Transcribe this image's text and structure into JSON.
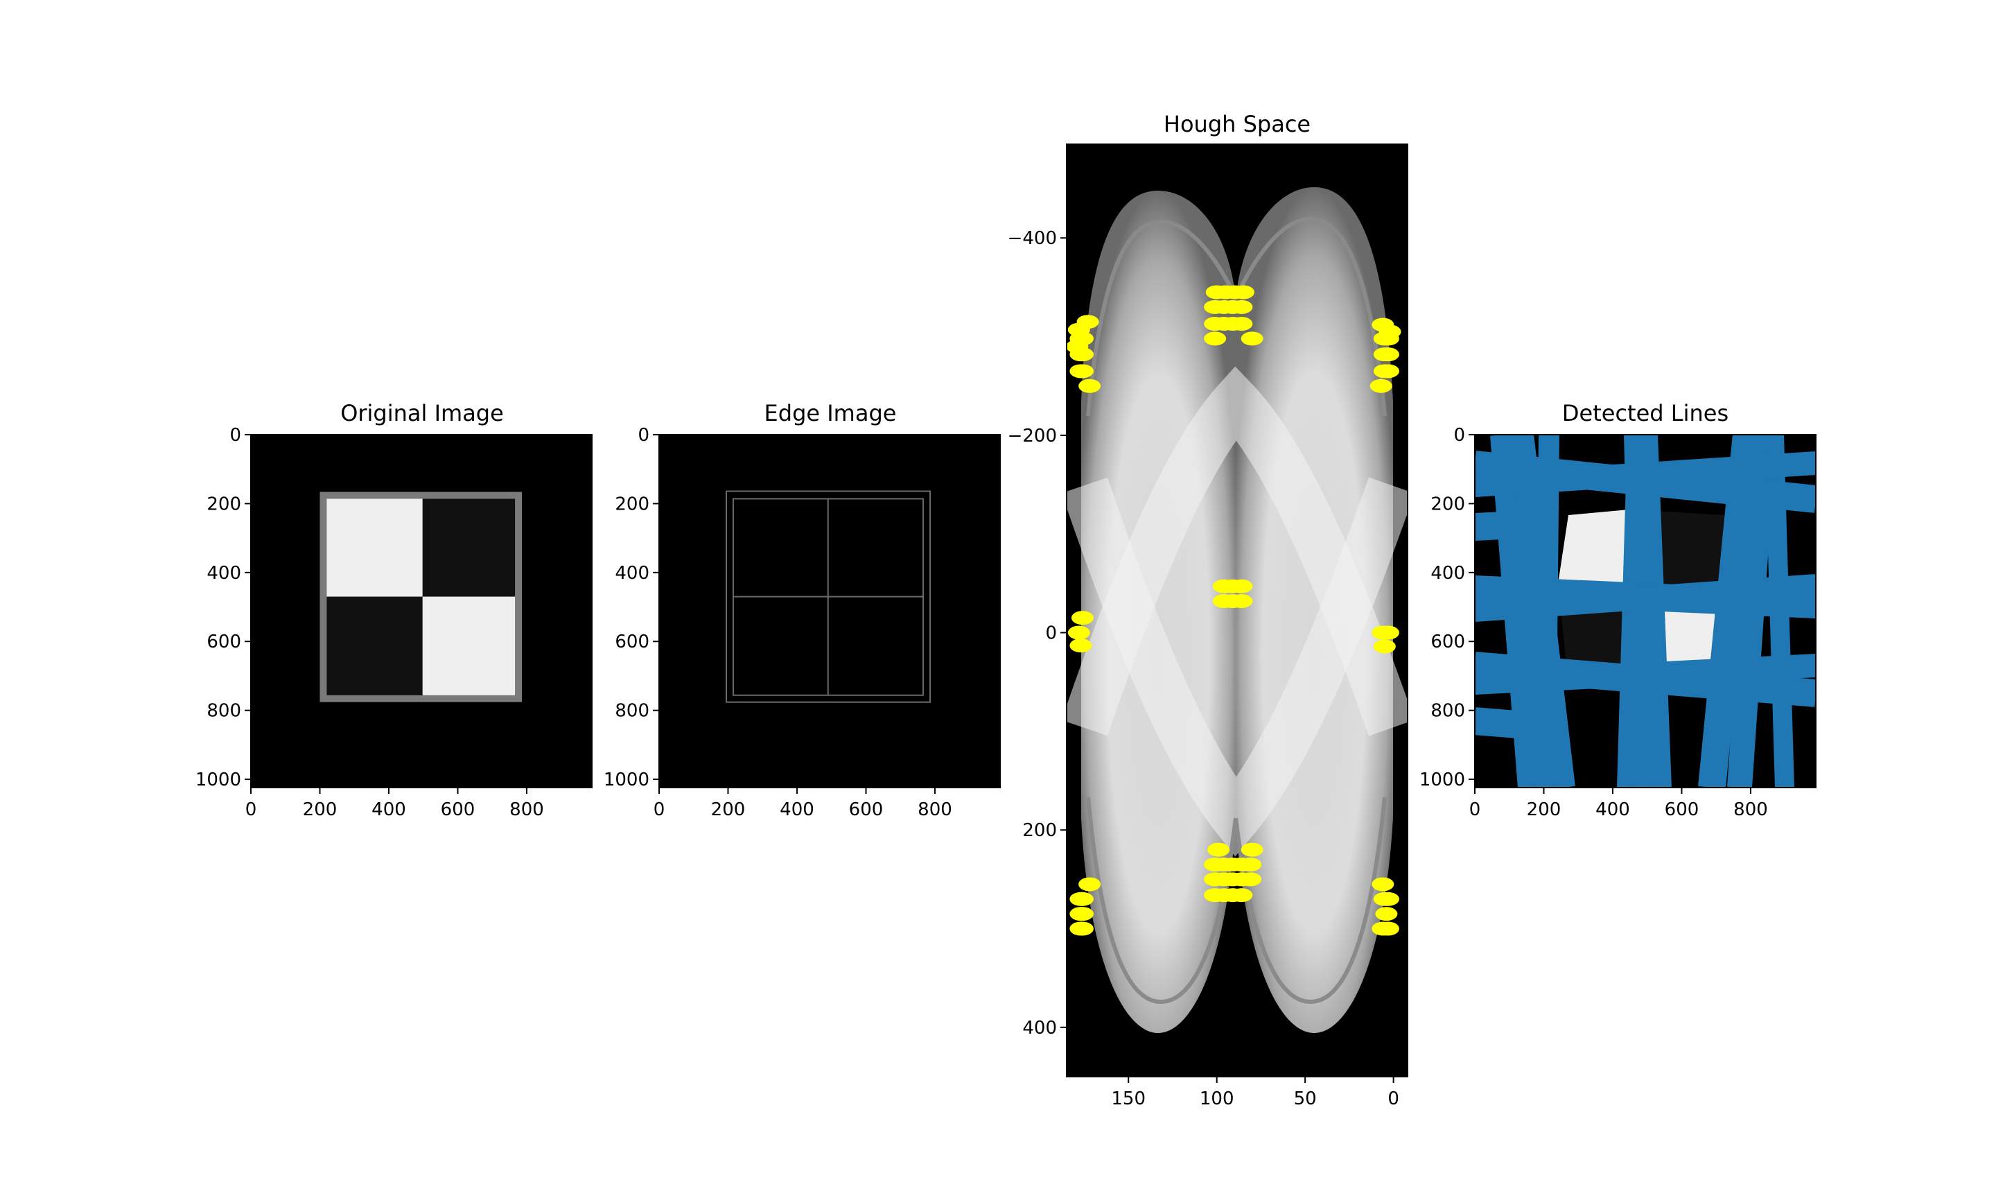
{
  "chart_data": [
    {
      "type": "image",
      "title": "Original Image",
      "xlim": [
        0,
        989
      ],
      "ylim": [
        1024,
        0
      ],
      "xticks": [
        0,
        200,
        400,
        600,
        800
      ],
      "yticks": [
        0,
        200,
        400,
        600,
        800,
        1000
      ],
      "frame": {
        "x0": 200,
        "y0": 166,
        "x1": 786,
        "y1": 776,
        "color": "#7a7a7a"
      },
      "quadrants": [
        {
          "x0": 220,
          "y0": 186,
          "x1": 498,
          "y1": 470,
          "color": "#efefef"
        },
        {
          "x0": 498,
          "y0": 186,
          "x1": 766,
          "y1": 470,
          "color": "#111111"
        },
        {
          "x0": 220,
          "y0": 470,
          "x1": 498,
          "y1": 756,
          "color": "#111111"
        },
        {
          "x0": 498,
          "y0": 470,
          "x1": 766,
          "y1": 756,
          "color": "#efefef"
        }
      ]
    },
    {
      "type": "image",
      "title": "Edge Image",
      "xlim": [
        0,
        989
      ],
      "ylim": [
        1024,
        0
      ],
      "xticks": [
        0,
        200,
        400,
        600,
        800
      ],
      "yticks": [
        0,
        200,
        400,
        600,
        800,
        1000
      ],
      "edges": {
        "outer": [
          195,
          164,
          786,
          776
        ],
        "inner": [
          215,
          186,
          766,
          756
        ],
        "vline_x": 490,
        "hline_y": 470,
        "color": "#6a6a6a"
      }
    },
    {
      "type": "scatter",
      "title": "Hough Space",
      "xlim": [
        185,
        -8
      ],
      "ylim": [
        450,
        -495
      ],
      "xticks": [
        150,
        100,
        50,
        0
      ],
      "yticks": [
        -400,
        -200,
        0,
        200,
        400
      ],
      "point_color": "#ffff00",
      "points": [
        [
          178,
          -307
        ],
        [
          177,
          -298
        ],
        [
          177,
          -282
        ],
        [
          177,
          -265
        ],
        [
          176,
          -298
        ],
        [
          176,
          -282
        ],
        [
          176,
          -265
        ],
        [
          179,
          -290
        ],
        [
          173,
          -315
        ],
        [
          172,
          -250
        ],
        [
          177,
          13
        ],
        [
          178,
          0
        ],
        [
          176,
          -15
        ],
        [
          177,
          300
        ],
        [
          177,
          285
        ],
        [
          177,
          270
        ],
        [
          176,
          300
        ],
        [
          176,
          285
        ],
        [
          176,
          270
        ],
        [
          172,
          255
        ],
        [
          100,
          -345
        ],
        [
          95,
          -345
        ],
        [
          90,
          -345
        ],
        [
          85,
          -345
        ],
        [
          101,
          -330
        ],
        [
          96,
          -330
        ],
        [
          91,
          -330
        ],
        [
          86,
          -330
        ],
        [
          101,
          -313
        ],
        [
          96,
          -313
        ],
        [
          91,
          -313
        ],
        [
          86,
          -313
        ],
        [
          101,
          -298
        ],
        [
          80,
          -298
        ],
        [
          96,
          -47
        ],
        [
          91,
          -47
        ],
        [
          86,
          -47
        ],
        [
          96,
          -32
        ],
        [
          91,
          -32
        ],
        [
          86,
          -32
        ],
        [
          99,
          220
        ],
        [
          80,
          220
        ],
        [
          101,
          235
        ],
        [
          96,
          235
        ],
        [
          91,
          235
        ],
        [
          86,
          235
        ],
        [
          81,
          235
        ],
        [
          101,
          250
        ],
        [
          96,
          250
        ],
        [
          91,
          250
        ],
        [
          86,
          250
        ],
        [
          81,
          250
        ],
        [
          101,
          266
        ],
        [
          96,
          266
        ],
        [
          91,
          266
        ],
        [
          86,
          266
        ],
        [
          6,
          -312
        ],
        [
          5,
          -298
        ],
        [
          5,
          -282
        ],
        [
          5,
          -265
        ],
        [
          3,
          -298
        ],
        [
          3,
          -282
        ],
        [
          3,
          -265
        ],
        [
          7,
          -250
        ],
        [
          2,
          -305
        ],
        [
          5,
          14
        ],
        [
          3,
          0
        ],
        [
          6,
          0
        ],
        [
          6,
          255
        ],
        [
          5,
          270
        ],
        [
          4,
          285
        ],
        [
          3,
          300
        ],
        [
          6,
          300
        ],
        [
          3,
          270
        ]
      ]
    },
    {
      "type": "image",
      "title": "Detected Lines",
      "xlim": [
        0,
        989
      ],
      "ylim": [
        1024,
        0
      ],
      "xticks": [
        0,
        200,
        400,
        600,
        800
      ],
      "yticks": [
        0,
        200,
        400,
        600,
        800,
        1000
      ],
      "line_color": "#1f77b4"
    }
  ]
}
